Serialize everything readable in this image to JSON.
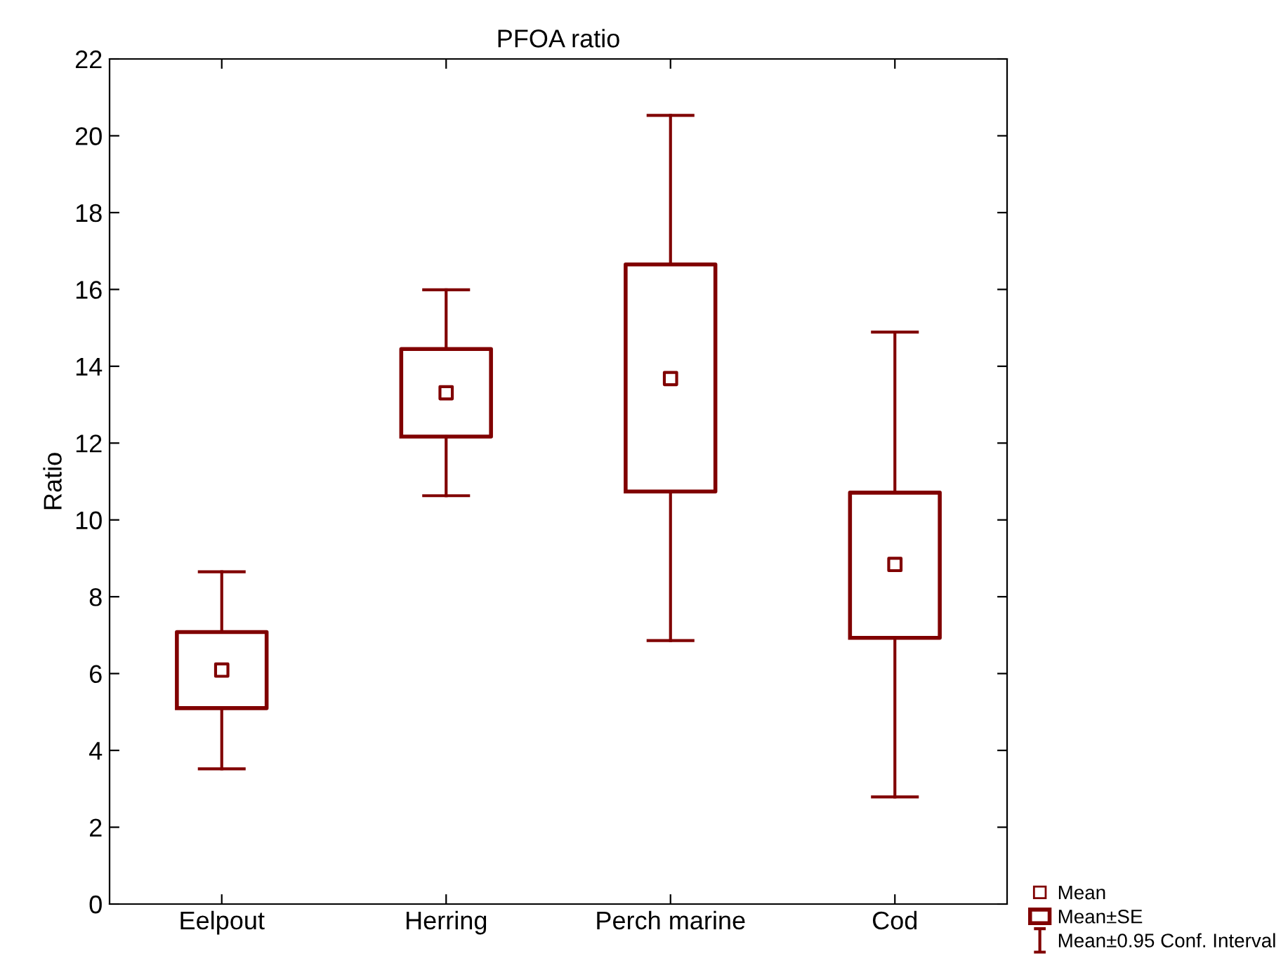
{
  "chart_data": {
    "type": "box",
    "title": "PFOA ratio",
    "ylabel": "Ratio",
    "categories": [
      "Eelpout",
      "Herring",
      "Perch marine",
      "Cod"
    ],
    "ylim": [
      0,
      22
    ],
    "yticks": [
      0,
      2,
      4,
      6,
      8,
      10,
      12,
      14,
      16,
      18,
      20,
      22
    ],
    "grid": false,
    "legend": "bottom right",
    "series": [
      {
        "name": "Mean±SE",
        "color": "#800000",
        "boxes": [
          {
            "low": 3.52,
            "q1": 5.1,
            "q3": 7.08,
            "high": 8.65
          },
          {
            "low": 10.63,
            "q1": 12.17,
            "q3": 14.45,
            "high": 15.99
          },
          {
            "low": 6.86,
            "q1": 10.74,
            "q3": 16.65,
            "high": 20.53
          },
          {
            "low": 2.79,
            "q1": 6.93,
            "q3": 10.71,
            "high": 14.89
          }
        ]
      },
      {
        "name": "Mean",
        "type": "scatter",
        "marker": "square",
        "color": "#800000",
        "values": [
          6.09,
          13.31,
          13.68,
          8.84
        ]
      }
    ],
    "annotations": [
      "Mean±0.95 Conf. Interval"
    ]
  }
}
